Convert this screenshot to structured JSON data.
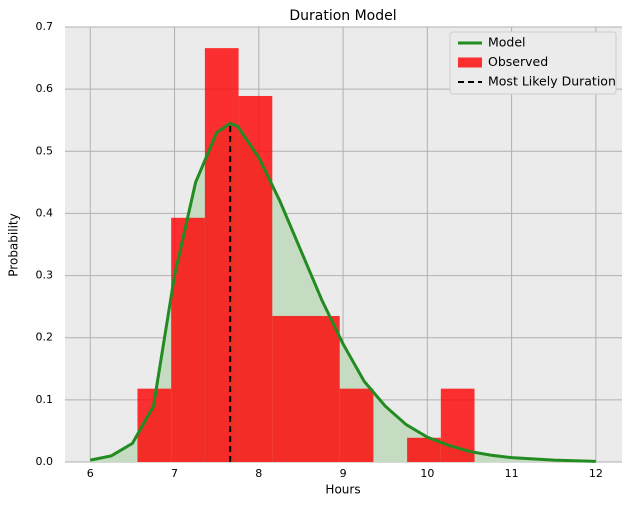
{
  "chart_data": {
    "type": "histogram",
    "title": "Duration Model",
    "xlabel": "Hours",
    "ylabel": "Probability",
    "hist_name": "Observed",
    "hist_color": "#ff0000",
    "bins": [
      6.56,
      6.96,
      7.36,
      7.76,
      8.16,
      8.56,
      8.96,
      9.36,
      9.76,
      10.16,
      10.56
    ],
    "counts": [
      0.118,
      0.393,
      0.666,
      0.589,
      0.235,
      0.235,
      0.118,
      0,
      0.039,
      0.118
    ],
    "model": {
      "name": "Model",
      "color": "#228b22",
      "fill": "#c5dbc2",
      "x": [
        6.0,
        6.25,
        6.5,
        6.75,
        7.0,
        7.25,
        7.5,
        7.66,
        7.75,
        8.0,
        8.25,
        8.5,
        8.75,
        9.0,
        9.25,
        9.5,
        9.75,
        10.0,
        10.25,
        10.5,
        10.75,
        11.0,
        11.5,
        12.0
      ],
      "values": [
        0.003,
        0.01,
        0.03,
        0.09,
        0.3,
        0.45,
        0.53,
        0.545,
        0.54,
        0.49,
        0.42,
        0.34,
        0.26,
        0.19,
        0.13,
        0.09,
        0.06,
        0.04,
        0.027,
        0.017,
        0.011,
        0.007,
        0.003,
        0.001
      ]
    },
    "mode": {
      "name": "Most Likely Duration",
      "color": "#000000",
      "x": 7.66,
      "y": 0.545
    },
    "xlim": [
      5.7,
      12.31
    ],
    "ylim": [
      0,
      0.7
    ],
    "xticks": [
      6,
      7,
      8,
      9,
      10,
      11,
      12
    ],
    "yticks": [
      {
        "value": 0,
        "label": "0.0"
      },
      0.1,
      0.2,
      0.3,
      0.4,
      0.5,
      0.6,
      0.7
    ],
    "grid": true,
    "legend": "upper right"
  }
}
